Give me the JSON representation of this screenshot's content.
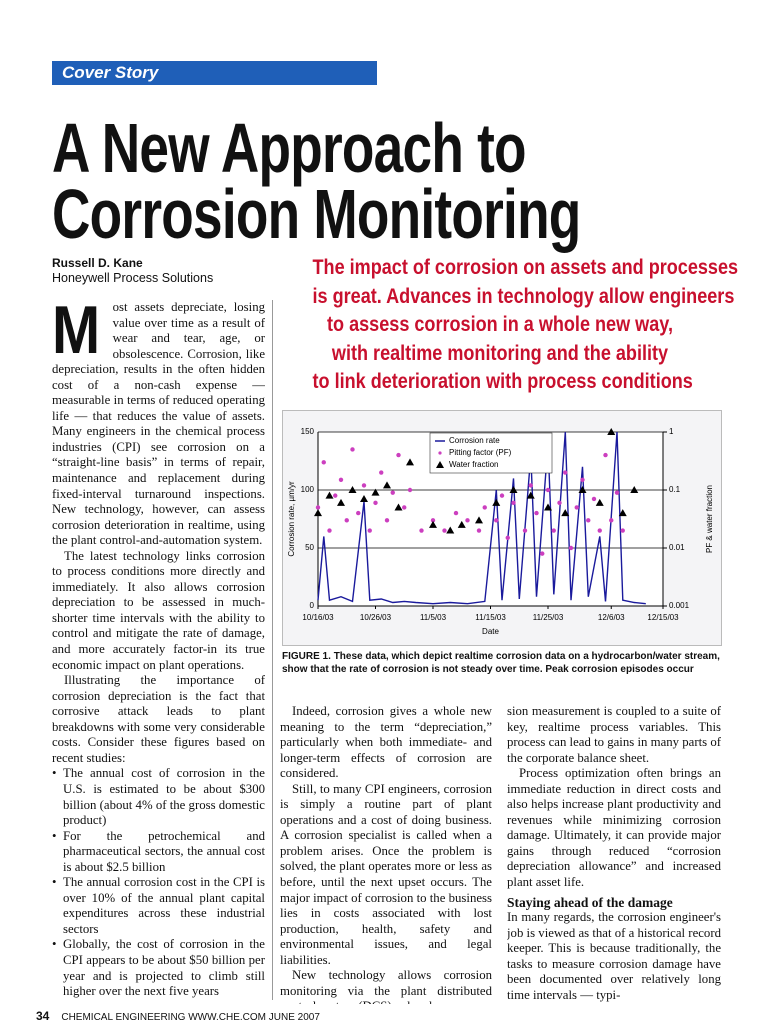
{
  "header": {
    "section": "Cover Story",
    "title_line1": "A New Approach to",
    "title_line2": "Corrosion Monitoring"
  },
  "author": {
    "name": "Russell D. Kane",
    "affiliation": "Honeywell Process Solutions"
  },
  "deck": [
    "The impact of corrosion on assets and processes",
    "is great. Advances in technology allow engineers",
    "to assess corrosion in a whole new way,",
    "with realtime monitoring and the ability",
    "to link deterioration with process conditions"
  ],
  "left_column": {
    "dropcap": "M",
    "paragraphs": [
      "ost assets depreciate, losing value over time as a result of wear and tear, age, or obsolescence. Corrosion, like depreciation, results in the often hidden cost of a non-cash expense — measurable in terms of reduced operating life — that reduces the value of assets. Many engineers in the chemical process industries (CPI) see corrosion on a “straight-line basis” in terms of repair, maintenance and replacement during fixed-interval turnaround inspections. New technology, however, can assess corrosion deterioration in realtime, using the plant control-and-automation system.",
      "The latest technology links corrosion to process conditions more directly and immediately. It also allows corrosion depreciation to be assessed in much-shorter time intervals with the ability to control and mitigate the rate of damage, and more accurately factor-in its true economic impact on plant operations.",
      "Illustrating the importance of corrosion depreciation is the fact that corrosive attack leads to plant breakdowns with some very considerable costs. Consider these figures based on recent studies:"
    ],
    "bullets": [
      "The annual cost of corrosion in the U.S. is estimated to be about $300 billion (about 4% of the gross domestic product)",
      "For the petrochemical and pharmaceutical sectors, the annual cost is about $2.5 billion",
      "The annual corrosion cost in the CPI is over 10% of the annual plant capital expenditures across these industrial sectors",
      "Globally, the cost of corrosion in the CPI appears to be about $50 billion per year and is projected to climb still higher over the next five years"
    ]
  },
  "middle_column": {
    "paragraphs": [
      "Indeed, corrosion gives a whole new meaning to the term “depreciation,” particularly when both immediate- and longer-term effects of corrosion are considered.",
      "Still, to many CPI engineers, corrosion is simply a routine part of plant operations and a cost of doing business. A corrosion specialist is called when a problem arises. Once the problem is solved, the plant operates more or less as before, until the next upset occurs. The major impact of corrosion to the business lies in costs associated with lost production, health, safety and environmental issues, and legal liabilities.",
      "New technology allows corrosion monitoring via the plant distributed control system (DCS), whereby corro-"
    ]
  },
  "right_column": {
    "paragraphs": [
      "sion measurement is coupled to a suite of key, realtime process variables. This process can lead to gains in many parts of the corporate balance sheet.",
      "Process optimization often brings an immediate reduction in direct costs and also helps increase plant productivity and revenues while minimizing corrosion damage. Ultimately, it can provide major gains through reduced “corrosion depreciation allowance” and increased plant asset life."
    ],
    "heading": "Staying ahead of the damage",
    "paragraphs2": [
      "In many regards, the corrosion engineer's job is viewed as that of a historical record keeper. This is because traditionally, the tasks to measure corrosion damage have been documented over relatively long time intervals — typi-"
    ]
  },
  "caption": {
    "label": "FIGURE 1.",
    "text": "These data, which depict realtime corrosion data on a hydrocarbon/water stream, show that the rate of corrosion is not steady over time. Peak corrosion episodes occur"
  },
  "footer": {
    "page": "34",
    "text": "CHEMICAL ENGINEERING WWW.CHE.COM JUNE 2007"
  },
  "chart_data": {
    "type": "line",
    "x_label": "Date",
    "y_label": "Corrosion rate, µm/yr",
    "y2_label": "PF & water fraction",
    "xlim": [
      "10/16/03",
      "12/15/03"
    ],
    "xticks": [
      "10/16/03",
      "10/26/03",
      "11/5/03",
      "11/15/03",
      "11/25/03",
      "12/6/03",
      "12/15/03"
    ],
    "ylim": [
      0,
      150
    ],
    "yticks": [
      0,
      50,
      100,
      150
    ],
    "y2lim": [
      0.001,
      1
    ],
    "y2ticks": [
      0.001,
      0.01,
      0.1,
      1
    ],
    "y2log": true,
    "grid": true,
    "legend": "top",
    "series": [
      {
        "name": "Corrosion rate",
        "color": "#1a1a9c",
        "mark": "line",
        "x": [
          "10/16/03",
          "10/17/03",
          "10/18/03",
          "10/20/03",
          "10/22/03",
          "10/24/03",
          "10/25/03",
          "10/27/03",
          "10/29/03",
          "10/31/03",
          "11/2/03",
          "11/5/03",
          "11/8/03",
          "11/11/03",
          "11/14/03",
          "11/16/03",
          "11/17/03",
          "11/19/03",
          "11/20/03",
          "11/22/03",
          "11/23/03",
          "11/25/03",
          "11/26/03",
          "11/28/03",
          "11/29/03",
          "12/1/03",
          "12/2/03",
          "12/4/03",
          "12/5/03",
          "12/7/03",
          "12/8/03",
          "12/10/03",
          "12/12/03"
        ],
        "values": [
          5,
          60,
          5,
          8,
          4,
          90,
          5,
          6,
          3,
          4,
          3,
          2,
          3,
          2,
          4,
          100,
          5,
          110,
          6,
          130,
          8,
          140,
          10,
          150,
          5,
          120,
          8,
          60,
          4,
          150,
          5,
          3,
          2
        ]
      },
      {
        "name": "Pitting factor (PF)",
        "color": "#cc3fbf",
        "mark": "dot",
        "axis": "y2",
        "x": [
          "10/16/03",
          "10/17/03",
          "10/18/03",
          "10/19/03",
          "10/20/03",
          "10/21/03",
          "10/22/03",
          "10/23/03",
          "10/24/03",
          "10/25/03",
          "10/26/03",
          "10/27/03",
          "10/28/03",
          "10/29/03",
          "10/30/03",
          "10/31/03",
          "11/1/03",
          "11/3/03",
          "11/5/03",
          "11/7/03",
          "11/9/03",
          "11/11/03",
          "11/13/03",
          "11/14/03",
          "11/15/03",
          "11/16/03",
          "11/17/03",
          "11/18/03",
          "11/19/03",
          "11/20/03",
          "11/21/03",
          "11/22/03",
          "11/23/03",
          "11/24/03",
          "11/25/03",
          "11/26/03",
          "11/27/03",
          "11/28/03",
          "11/29/03",
          "11/30/03",
          "12/1/03",
          "12/2/03",
          "12/3/03",
          "12/4/03",
          "12/5/03",
          "12/6/03",
          "12/7/03",
          "12/8/03"
        ],
        "values": [
          0.05,
          0.3,
          0.02,
          0.08,
          0.15,
          0.03,
          0.5,
          0.04,
          0.12,
          0.02,
          0.06,
          0.2,
          0.03,
          0.09,
          0.4,
          0.05,
          0.1,
          0.02,
          0.03,
          0.02,
          0.04,
          0.03,
          0.02,
          0.05,
          0.25,
          0.03,
          0.08,
          0.015,
          0.06,
          0.3,
          0.02,
          0.12,
          0.04,
          0.008,
          0.1,
          0.02,
          0.06,
          0.2,
          0.01,
          0.05,
          0.15,
          0.03,
          0.07,
          0.02,
          0.4,
          0.03,
          0.09,
          0.02
        ]
      },
      {
        "name": "Water fraction",
        "color": "#000000",
        "mark": "triangle",
        "axis": "y2",
        "x": [
          "10/16/03",
          "10/18/03",
          "10/20/03",
          "10/22/03",
          "10/24/03",
          "10/26/03",
          "10/28/03",
          "10/30/03",
          "11/1/03",
          "11/5/03",
          "11/8/03",
          "11/10/03",
          "11/13/03",
          "11/16/03",
          "11/19/03",
          "11/22/03",
          "11/25/03",
          "11/28/03",
          "12/1/03",
          "12/4/03",
          "12/6/03",
          "12/8/03",
          "12/10/03"
        ],
        "values": [
          0.04,
          0.08,
          0.06,
          0.1,
          0.07,
          0.09,
          0.12,
          0.05,
          0.3,
          0.025,
          0.02,
          0.025,
          0.03,
          0.06,
          0.1,
          0.08,
          0.05,
          0.04,
          0.1,
          0.06,
          1,
          0.04,
          0.1
        ]
      }
    ]
  }
}
